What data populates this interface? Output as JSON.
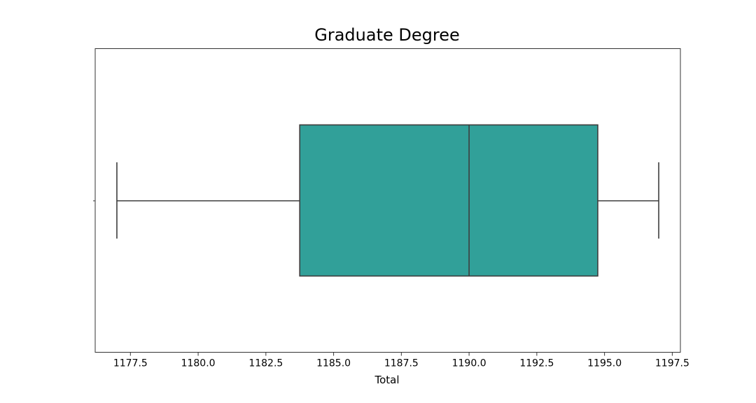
{
  "chart_data": {
    "type": "box",
    "title": "Graduate Degree",
    "xlabel": "Total",
    "ylabel": "",
    "orientation": "horizontal",
    "xlim": [
      1176.2,
      1197.8
    ],
    "x_ticks": [
      1177.5,
      1180.0,
      1182.5,
      1185.0,
      1187.5,
      1190.0,
      1192.5,
      1195.0,
      1197.5
    ],
    "x_tick_labels": [
      "1177.5",
      "1180.0",
      "1182.5",
      "1185.0",
      "1187.5",
      "1190.0",
      "1192.5",
      "1195.0",
      "1197.5"
    ],
    "grid": false,
    "series": [
      {
        "min": 1177.0,
        "q1": 1183.75,
        "median": 1190.0,
        "q3": 1194.75,
        "max": 1197.0
      }
    ],
    "box_color": "#31a099",
    "line_color": "#3d3d3d"
  }
}
